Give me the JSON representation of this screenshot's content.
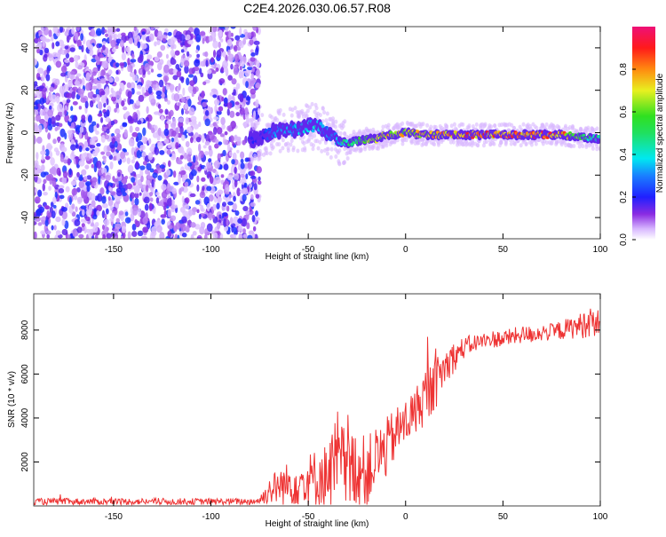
{
  "title": "C2E4.2026.030.06.57.R08",
  "chart_data": [
    {
      "type": "heatmap",
      "name": "spectrogram",
      "xlabel": "Height of straight line (km)",
      "ylabel": "Frequency (Hz)",
      "xlim": [
        -191,
        100
      ],
      "ylim": [
        -50,
        50
      ],
      "xticks": [
        -150,
        -100,
        -50,
        0,
        50,
        100
      ],
      "yticks": [
        -40,
        -20,
        0,
        20,
        40
      ],
      "noise_region_x": [
        -191,
        -75
      ],
      "ridge": {
        "x": [
          -75,
          -70,
          -65,
          -60,
          -55,
          -50,
          -45,
          -40,
          -35,
          -30,
          -25,
          -20,
          -15,
          -10,
          -5,
          0,
          10,
          20,
          30,
          50,
          80,
          90,
          100
        ],
        "frequency": [
          -3,
          0,
          1,
          1,
          2,
          3,
          3,
          0,
          -4,
          -5,
          -4,
          -3,
          -3,
          -1,
          -1,
          0,
          -1,
          -1,
          -1,
          -1,
          -1,
          -2,
          -3
        ],
        "amplitude": [
          0.2,
          0.3,
          0.35,
          0.4,
          0.4,
          0.4,
          0.45,
          0.35,
          0.4,
          0.55,
          0.6,
          0.7,
          0.75,
          0.85,
          0.85,
          0.8,
          0.85,
          0.9,
          0.95,
          0.95,
          0.95,
          0.6,
          0.5
        ]
      },
      "colorbar": {
        "label": "Normalized spectral amplitude",
        "ticks": [
          "0.0",
          "0.2",
          "0.4",
          "0.6",
          "0.8"
        ],
        "range": [
          0,
          1
        ]
      }
    },
    {
      "type": "line",
      "name": "snr",
      "xlabel": "Height of straight line (km)",
      "ylabel": "SNR (10 * v/v)",
      "xlim": [
        -191,
        100
      ],
      "ylim": [
        0,
        9650
      ],
      "xticks": [
        -150,
        -100,
        -50,
        0,
        50,
        100
      ],
      "yticks": [
        2000,
        4000,
        6000,
        8000
      ],
      "color": "#ee3333",
      "x": [
        -190,
        -180,
        -170,
        -160,
        -150,
        -140,
        -130,
        -120,
        -110,
        -100,
        -90,
        -80,
        -75,
        -70,
        -65,
        -60,
        -55,
        -50,
        -45,
        -40,
        -35,
        -30,
        -25,
        -20,
        -15,
        -10,
        -5,
        0,
        5,
        10,
        15,
        20,
        25,
        30,
        35,
        40,
        45,
        50,
        55,
        60,
        65,
        70,
        75,
        80,
        85,
        90,
        95,
        100
      ],
      "values": [
        200,
        200,
        200,
        200,
        200,
        200,
        200,
        200,
        200,
        200,
        200,
        200,
        250,
        700,
        900,
        1000,
        1100,
        1200,
        1300,
        1400,
        2000,
        1500,
        1800,
        1500,
        2200,
        2600,
        3300,
        3800,
        4300,
        5000,
        5500,
        6300,
        6800,
        7200,
        7400,
        7500,
        7600,
        7600,
        7700,
        7800,
        7800,
        7900,
        7900,
        8000,
        8100,
        8200,
        8400,
        8300
      ],
      "spread": [
        150,
        150,
        150,
        150,
        150,
        150,
        150,
        150,
        150,
        150,
        150,
        150,
        200,
        600,
        900,
        1000,
        1100,
        1200,
        1400,
        1500,
        2500,
        1800,
        1800,
        1600,
        1500,
        1400,
        1200,
        1100,
        1100,
        1300,
        1200,
        900,
        700,
        500,
        400,
        400,
        400,
        400,
        400,
        400,
        400,
        400,
        400,
        450,
        500,
        600,
        700,
        600
      ]
    }
  ]
}
